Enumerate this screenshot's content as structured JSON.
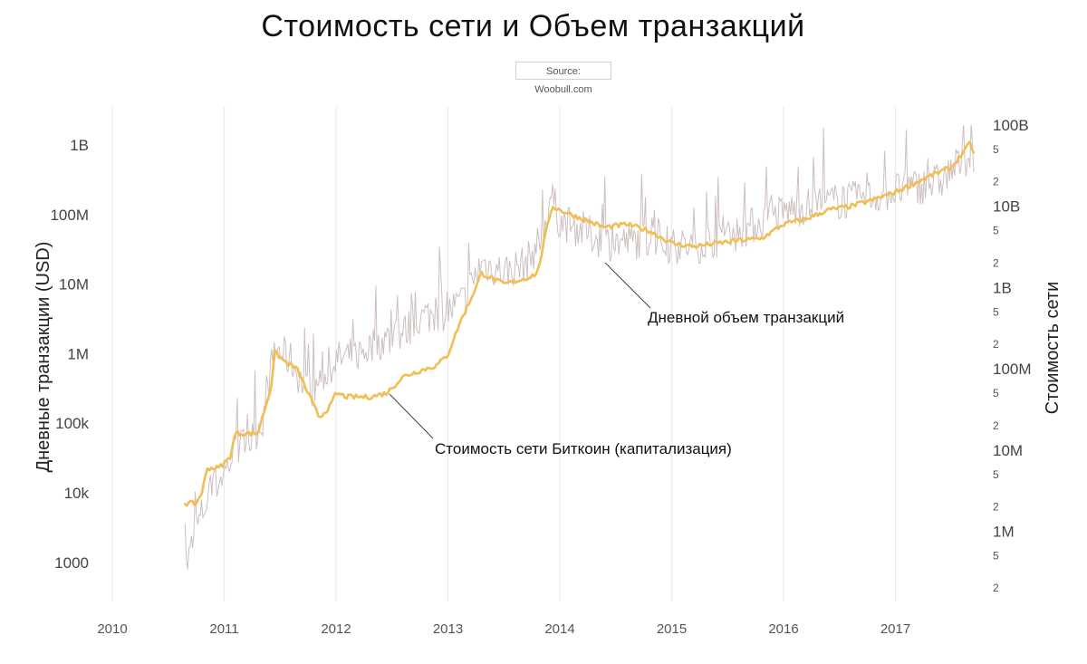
{
  "chart_data": {
    "type": "line",
    "title": "Стоимость сети и Объем транзакций",
    "source": "Source: Woobull.com",
    "x_ticks": [
      "2010",
      "2011",
      "2012",
      "2013",
      "2014",
      "2015",
      "2016",
      "2017"
    ],
    "xlim": [
      2010,
      2017.8
    ],
    "left_axis": {
      "label": "Дневные транзакции (USD)",
      "scale": "log",
      "range": [
        1000,
        1000000000
      ],
      "ticks": [
        "1000",
        "10k",
        "100k",
        "1M",
        "10M",
        "100M",
        "1B"
      ]
    },
    "right_axis": {
      "label": "Стоимость сети",
      "scale": "log",
      "range": [
        1000000,
        100000000000
      ],
      "major_ticks": [
        "1M",
        "10M",
        "100M",
        "1B",
        "10B",
        "100B"
      ],
      "minor_ticks": [
        "2",
        "5"
      ]
    },
    "series": [
      {
        "name": "Дневной объем транзакций",
        "axis": "left",
        "color": "#c9b8b8",
        "x": [
          2010.65,
          2010.75,
          2010.85,
          2011.0,
          2011.1,
          2011.25,
          2011.35,
          2011.45,
          2011.6,
          2011.75,
          2011.9,
          2012.0,
          2012.2,
          2012.4,
          2012.6,
          2012.8,
          2013.0,
          2013.15,
          2013.3,
          2013.5,
          2013.7,
          2013.85,
          2013.92,
          2014.0,
          2014.2,
          2014.4,
          2014.6,
          2014.8,
          2015.0,
          2015.2,
          2015.4,
          2015.6,
          2015.8,
          2016.0,
          2016.2,
          2016.4,
          2016.6,
          2016.8,
          2017.0,
          2017.2,
          2017.4,
          2017.55,
          2017.65,
          2017.7
        ],
        "values": [
          700,
          3000,
          8000,
          20000,
          40000,
          60000,
          120000,
          1200000,
          800000,
          250000,
          500000,
          800000,
          1000000,
          1500000,
          2000000,
          3500000,
          4000000,
          6000000,
          20000000,
          15000000,
          20000000,
          50000000,
          200000000,
          80000000,
          60000000,
          40000000,
          40000000,
          45000000,
          35000000,
          35000000,
          45000000,
          55000000,
          80000000,
          110000000,
          130000000,
          150000000,
          160000000,
          180000000,
          220000000,
          250000000,
          300000000,
          500000000,
          700000000,
          600000000
        ]
      },
      {
        "name": "Стоимость сети Биткоин (капитализация)",
        "axis": "right",
        "color": "#f1bd55",
        "x": [
          2010.65,
          2010.75,
          2010.8,
          2010.85,
          2010.95,
          2011.05,
          2011.1,
          2011.2,
          2011.3,
          2011.42,
          2011.45,
          2011.55,
          2011.65,
          2011.75,
          2011.85,
          2011.95,
          2012.0,
          2012.1,
          2012.3,
          2012.45,
          2012.6,
          2012.7,
          2012.9,
          2013.0,
          2013.1,
          2013.25,
          2013.3,
          2013.5,
          2013.7,
          2013.8,
          2013.88,
          2013.93,
          2014.0,
          2014.2,
          2014.4,
          2014.6,
          2014.8,
          2015.0,
          2015.2,
          2015.4,
          2015.6,
          2015.8,
          2016.0,
          2016.2,
          2016.4,
          2016.6,
          2016.8,
          2017.0,
          2017.2,
          2017.35,
          2017.5,
          2017.6,
          2017.67,
          2017.7
        ],
        "values": [
          2200000,
          2200000,
          3000000,
          6000000,
          6000000,
          8000000,
          16000000,
          16000000,
          16000000,
          60000000,
          160000000,
          120000000,
          100000000,
          50000000,
          25000000,
          35000000,
          50000000,
          45000000,
          45000000,
          50000000,
          80000000,
          90000000,
          110000000,
          150000000,
          350000000,
          1000000000,
          1500000000,
          1100000000,
          1300000000,
          1500000000,
          5000000000,
          10000000000,
          9000000000,
          7000000000,
          5500000000,
          6000000000,
          5000000000,
          3500000000,
          3200000000,
          3500000000,
          3800000000,
          4000000000,
          6000000000,
          7000000000,
          9000000000,
          10000000000,
          12000000000,
          15000000000,
          20000000000,
          25000000000,
          30000000000,
          45000000000,
          60000000000,
          45000000000
        ]
      }
    ],
    "annotations": [
      "Дневной объем транзакций",
      "Стоимость сети Биткоин (капитализация)"
    ]
  }
}
